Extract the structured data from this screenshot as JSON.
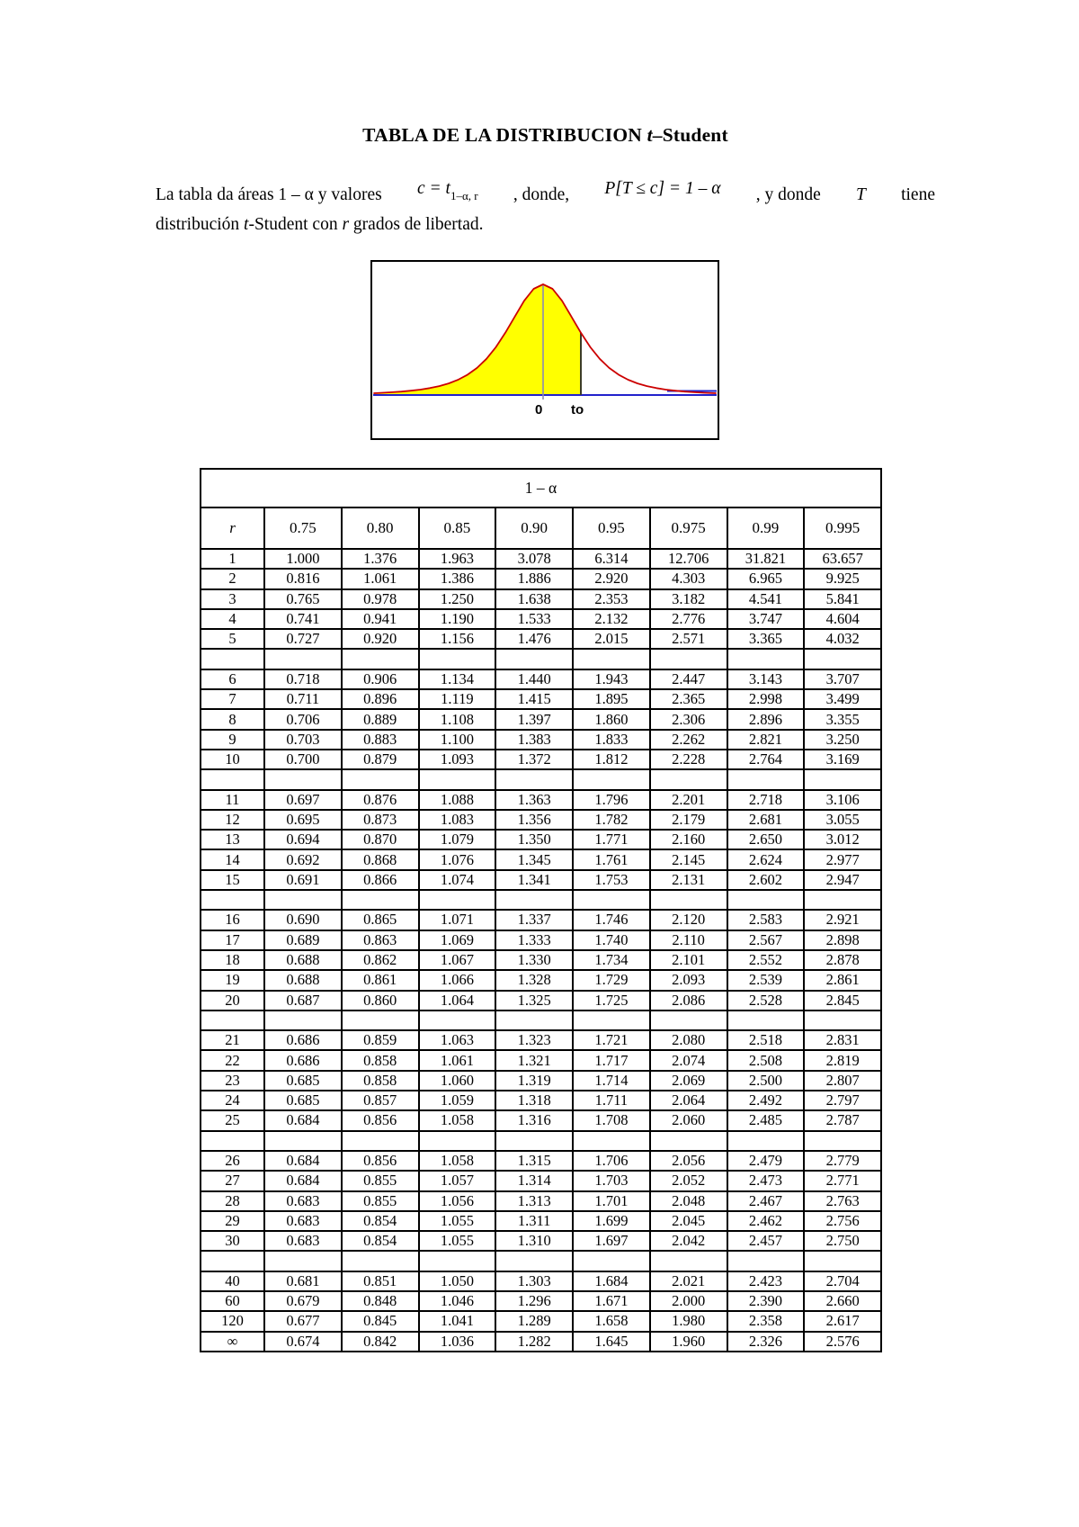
{
  "title": {
    "part1": "TABLA DE LA DISTRIBUCION  ",
    "part2": "t",
    "part3": "–Student"
  },
  "intro": {
    "l1_1": "La tabla da áreas 1 – α  y valores",
    "l1_2": "c = t",
    "l1_2sub": "1–α, r",
    "l1_3": ",  donde,",
    "l1_4": "P[T ≤ c] = 1 – α",
    "l1_5": ",  y donde",
    "l1_6": "T",
    "l1_7": "tiene",
    "l2_1": "distribución ",
    "l2_2": "t",
    "l2_3": "-Student con ",
    "l2_4": "r",
    "l2_5": " grados de libertad."
  },
  "figure": {
    "zero_label": "0",
    "t0_label": "to",
    "curve_color": "#cc0000",
    "fill_color": "#ffff00",
    "axis_color": "#2222cc"
  },
  "table": {
    "span_header": "1 – α",
    "r_header": "r",
    "alpha_levels": [
      "0.75",
      "0.80",
      "0.85",
      "0.90",
      "0.95",
      "0.975",
      "0.99",
      "0.995"
    ],
    "blocks": [
      {
        "rows": [
          [
            "1",
            "1.000",
            "1.376",
            "1.963",
            "3.078",
            "6.314",
            "12.706",
            "31.821",
            "63.657"
          ],
          [
            "2",
            "0.816",
            "1.061",
            "1.386",
            "1.886",
            "2.920",
            "4.303",
            "6.965",
            "9.925"
          ],
          [
            "3",
            "0.765",
            "0.978",
            "1.250",
            "1.638",
            "2.353",
            "3.182",
            "4.541",
            "5.841"
          ],
          [
            "4",
            "0.741",
            "0.941",
            "1.190",
            "1.533",
            "2.132",
            "2.776",
            "3.747",
            "4.604"
          ],
          [
            "5",
            "0.727",
            "0.920",
            "1.156",
            "1.476",
            "2.015",
            "2.571",
            "3.365",
            "4.032"
          ]
        ]
      },
      {
        "rows": [
          [
            "6",
            "0.718",
            "0.906",
            "1.134",
            "1.440",
            "1.943",
            "2.447",
            "3.143",
            "3.707"
          ],
          [
            "7",
            "0.711",
            "0.896",
            "1.119",
            "1.415",
            "1.895",
            "2.365",
            "2.998",
            "3.499"
          ],
          [
            "8",
            "0.706",
            "0.889",
            "1.108",
            "1.397",
            "1.860",
            "2.306",
            "2.896",
            "3.355"
          ],
          [
            "9",
            "0.703",
            "0.883",
            "1.100",
            "1.383",
            "1.833",
            "2.262",
            "2.821",
            "3.250"
          ],
          [
            "10",
            "0.700",
            "0.879",
            "1.093",
            "1.372",
            "1.812",
            "2.228",
            "2.764",
            "3.169"
          ]
        ]
      },
      {
        "rows": [
          [
            "11",
            "0.697",
            "0.876",
            "1.088",
            "1.363",
            "1.796",
            "2.201",
            "2.718",
            "3.106"
          ],
          [
            "12",
            "0.695",
            "0.873",
            "1.083",
            "1.356",
            "1.782",
            "2.179",
            "2.681",
            "3.055"
          ],
          [
            "13",
            "0.694",
            "0.870",
            "1.079",
            "1.350",
            "1.771",
            "2.160",
            "2.650",
            "3.012"
          ],
          [
            "14",
            "0.692",
            "0.868",
            "1.076",
            "1.345",
            "1.761",
            "2.145",
            "2.624",
            "2.977"
          ],
          [
            "15",
            "0.691",
            "0.866",
            "1.074",
            "1.341",
            "1.753",
            "2.131",
            "2.602",
            "2.947"
          ]
        ]
      },
      {
        "rows": [
          [
            "16",
            "0.690",
            "0.865",
            "1.071",
            "1.337",
            "1.746",
            "2.120",
            "2.583",
            "2.921"
          ],
          [
            "17",
            "0.689",
            "0.863",
            "1.069",
            "1.333",
            "1.740",
            "2.110",
            "2.567",
            "2.898"
          ],
          [
            "18",
            "0.688",
            "0.862",
            "1.067",
            "1.330",
            "1.734",
            "2.101",
            "2.552",
            "2.878"
          ],
          [
            "19",
            "0.688",
            "0.861",
            "1.066",
            "1.328",
            "1.729",
            "2.093",
            "2.539",
            "2.861"
          ],
          [
            "20",
            "0.687",
            "0.860",
            "1.064",
            "1.325",
            "1.725",
            "2.086",
            "2.528",
            "2.845"
          ]
        ]
      },
      {
        "rows": [
          [
            "21",
            "0.686",
            "0.859",
            "1.063",
            "1.323",
            "1.721",
            "2.080",
            "2.518",
            "2.831"
          ],
          [
            "22",
            "0.686",
            "0.858",
            "1.061",
            "1.321",
            "1.717",
            "2.074",
            "2.508",
            "2.819"
          ],
          [
            "23",
            "0.685",
            "0.858",
            "1.060",
            "1.319",
            "1.714",
            "2.069",
            "2.500",
            "2.807"
          ],
          [
            "24",
            "0.685",
            "0.857",
            "1.059",
            "1.318",
            "1.711",
            "2.064",
            "2.492",
            "2.797"
          ],
          [
            "25",
            "0.684",
            "0.856",
            "1.058",
            "1.316",
            "1.708",
            "2.060",
            "2.485",
            "2.787"
          ]
        ]
      },
      {
        "rows": [
          [
            "26",
            "0.684",
            "0.856",
            "1.058",
            "1.315",
            "1.706",
            "2.056",
            "2.479",
            "2.779"
          ],
          [
            "27",
            "0.684",
            "0.855",
            "1.057",
            "1.314",
            "1.703",
            "2.052",
            "2.473",
            "2.771"
          ],
          [
            "28",
            "0.683",
            "0.855",
            "1.056",
            "1.313",
            "1.701",
            "2.048",
            "2.467",
            "2.763"
          ],
          [
            "29",
            "0.683",
            "0.854",
            "1.055",
            "1.311",
            "1.699",
            "2.045",
            "2.462",
            "2.756"
          ],
          [
            "30",
            "0.683",
            "0.854",
            "1.055",
            "1.310",
            "1.697",
            "2.042",
            "2.457",
            "2.750"
          ]
        ]
      },
      {
        "rows": [
          [
            "40",
            "0.681",
            "0.851",
            "1.050",
            "1.303",
            "1.684",
            "2.021",
            "2.423",
            "2.704"
          ],
          [
            "60",
            "0.679",
            "0.848",
            "1.046",
            "1.296",
            "1.671",
            "2.000",
            "2.390",
            "2.660"
          ],
          [
            "120",
            "0.677",
            "0.845",
            "1.041",
            "1.289",
            "1.658",
            "1.980",
            "2.358",
            "2.617"
          ],
          [
            "∞",
            "0.674",
            "0.842",
            "1.036",
            "1.282",
            "1.645",
            "1.960",
            "2.326",
            "2.576"
          ]
        ]
      }
    ]
  }
}
